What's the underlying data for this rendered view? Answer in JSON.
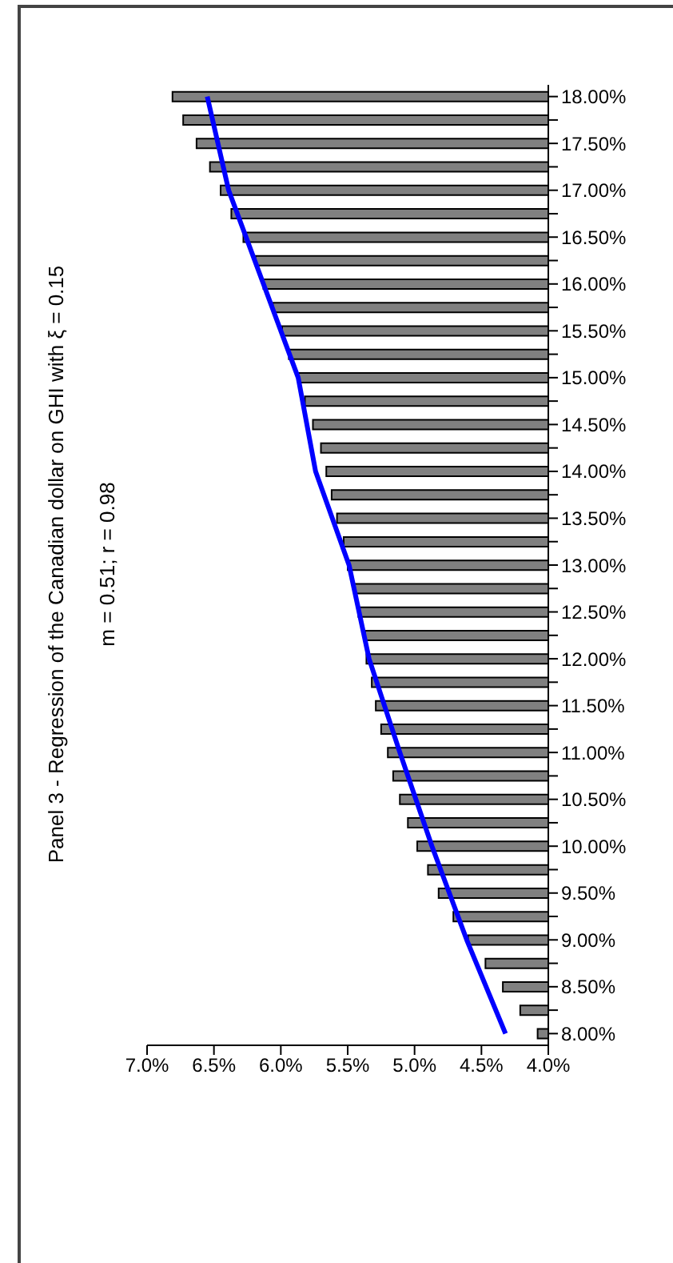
{
  "chart_data": {
    "type": "bar",
    "orientation": "horizontal",
    "title": "Panel 3 -  Regression of the Canadian dollar on GHI with ξ = 0.15",
    "subtitle": "m = 0.51; r = 0.98",
    "categories": [
      "18.00%",
      null,
      "17.50%",
      null,
      "17.00%",
      null,
      "16.50%",
      null,
      "16.00%",
      null,
      "15.50%",
      null,
      "15.00%",
      null,
      "14.50%",
      null,
      "14.00%",
      null,
      "13.50%",
      null,
      "13.00%",
      null,
      "12.50%",
      null,
      "12.00%",
      null,
      "11.50%",
      null,
      "11.00%",
      null,
      "10.50%",
      null,
      "10.00%",
      null,
      "9.50%",
      null,
      "9.00%",
      null,
      "8.50%",
      null,
      "8.00%"
    ],
    "series": [
      {
        "color": "#808080",
        "values": [
          6.81,
          6.73,
          6.63,
          6.53,
          6.45,
          6.37,
          6.28,
          6.19,
          6.13,
          6.06,
          5.99,
          5.94,
          5.87,
          5.82,
          5.76,
          5.7,
          5.66,
          5.62,
          5.58,
          5.53,
          5.5,
          5.45,
          5.42,
          5.37,
          5.36,
          5.32,
          5.29,
          5.25,
          5.2,
          5.16,
          5.11,
          5.05,
          4.98,
          4.9,
          4.82,
          4.71,
          4.6,
          4.47,
          4.34,
          4.21,
          4.08
        ]
      },
      {
        "type": "line",
        "color": "#0000ff",
        "x": [
          "18.00%",
          "17.00%",
          "16.00%",
          "15.00%",
          "14.00%",
          "13.00%",
          "12.00%",
          "11.00%",
          "10.00%",
          "9.00%",
          "8.00%"
        ],
        "values": [
          6.55,
          6.39,
          6.13,
          5.87,
          5.74,
          5.49,
          5.34,
          5.11,
          4.87,
          4.61,
          4.32
        ]
      }
    ],
    "xlim": [
      7,
      4
    ],
    "xticks": [
      {
        "value": 7,
        "label": "7.0%"
      },
      {
        "value": 6.5,
        "label": "6.5%"
      },
      {
        "value": 6,
        "label": "6.0%"
      },
      {
        "value": 5.5,
        "label": "5.5%"
      },
      {
        "value": 5,
        "label": "5.0%"
      },
      {
        "value": 4.5,
        "label": "4.5%"
      },
      {
        "value": 4,
        "label": "4.0%"
      }
    ],
    "marker": "none"
  }
}
